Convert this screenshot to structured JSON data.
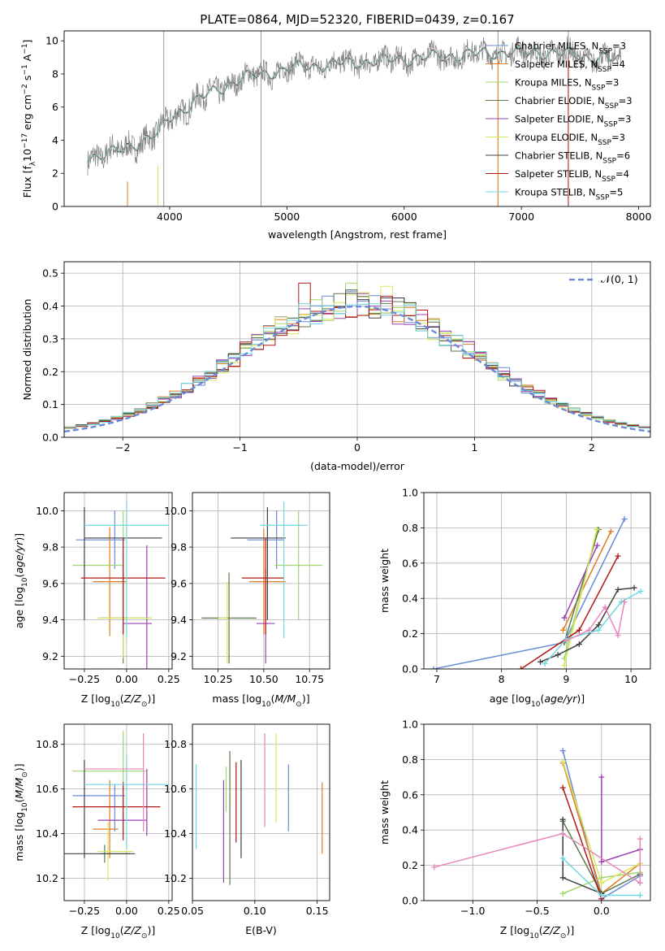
{
  "figure_title": "PLATE=0864, MJD=52320, FIBERID=0439, z=0.167",
  "colors": {
    "series": [
      "#6a8ad6",
      "#e07b20",
      "#a0d86a",
      "#5a7a4a",
      "#9a40b0",
      "#d8e860",
      "#404040",
      "#b01818",
      "#70d8e0"
    ],
    "pink": "#e886b8",
    "data": "#808080",
    "grid": "#b0b0b0"
  },
  "chart_data": [
    {
      "type": "line",
      "title": "PLATE=0864, MJD=52320, FIBERID=0439, z=0.167",
      "xlabel": "wavelength [Angstrom, rest frame]",
      "ylabel": "Flux [f_λ10^-17 erg cm^-2 s^-1 A^-1]",
      "xlim": [
        3100,
        8100
      ],
      "ylim": [
        0,
        10.6
      ],
      "xticks": [
        4000,
        5000,
        6000,
        7000,
        8000
      ],
      "yticks": [
        0,
        2,
        4,
        6,
        8,
        10
      ],
      "grid": false,
      "legend_position": "upper-right",
      "continuum_knots": {
        "x": [
          3300,
          3400,
          3600,
          3800,
          3900,
          4000,
          4200,
          4400,
          4600,
          4800,
          5000,
          5200,
          5400,
          5600,
          5800,
          6000,
          6200,
          6400,
          6600,
          6800,
          7000,
          7200,
          7400,
          7600,
          7850
        ],
        "y": [
          3.0,
          3.1,
          3.4,
          4.1,
          4.4,
          5.3,
          6.3,
          7.0,
          7.7,
          8.0,
          8.3,
          8.5,
          8.6,
          8.7,
          8.8,
          8.9,
          9.0,
          9.1,
          9.2,
          9.3,
          9.3,
          9.3,
          9.2,
          9.0,
          8.8
        ]
      },
      "series": [
        {
          "name": "Chabrier MILES, N_SSP=3"
        },
        {
          "name": "Salpeter MILES, N_SSP=4"
        },
        {
          "name": "Kroupa MILES, N_SSP=3"
        },
        {
          "name": "Chabrier ELODIE, N_SSP=3"
        },
        {
          "name": "Salpeter ELODIE, N_SSP=3"
        },
        {
          "name": "Kroupa ELODIE, N_SSP=3"
        },
        {
          "name": "Chabrier STELIB, N_SSP=6"
        },
        {
          "name": "Salpeter STELIB, N_SSP=4"
        },
        {
          "name": "Kroupa STELIB, N_SSP=5"
        }
      ]
    },
    {
      "type": "histogram",
      "xlabel": "(data-model)/error",
      "ylabel": "Normed distribution",
      "xlim": [
        -2.5,
        2.5
      ],
      "ylim": [
        0,
        0.535
      ],
      "xticks": [
        -2,
        -1,
        0,
        1,
        2
      ],
      "yticks": [
        0.0,
        0.1,
        0.2,
        0.3,
        0.4,
        0.5
      ],
      "grid": true,
      "legend": "N(0,1)",
      "legend_position": "upper-right",
      "bin_width": 0.1,
      "bin_start": -2.5,
      "peak_bins": [
        {
          "x": 0.1,
          "y": 0.51
        },
        {
          "x": -0.4,
          "y": 0.47
        },
        {
          "x": 0.0,
          "y": 0.47
        },
        {
          "x": 0.3,
          "y": 0.46
        }
      ]
    },
    {
      "type": "errorbar",
      "xlabel": "Z [log10(Z/Z⊙)]",
      "ylabel": "age [log10(age/yr)]",
      "xlim": [
        -0.37,
        0.27
      ],
      "ylim": [
        9.13,
        10.1
      ],
      "xticks": [
        -0.25,
        0.0,
        0.25
      ],
      "xticklabels": [
        "−0.25",
        "0.00",
        "0.25"
      ],
      "yticks": [
        9.2,
        9.4,
        9.6,
        9.8,
        10.0
      ],
      "grid": true,
      "points": [
        {
          "x": -0.07,
          "y": 9.84,
          "xerr": [
            0.23,
            0.06
          ],
          "yerr": [
            0.16,
            0.16
          ]
        },
        {
          "x": -0.1,
          "y": 9.61,
          "xerr": [
            0.1,
            0.1
          ],
          "yerr": [
            0.3,
            0.3
          ]
        },
        {
          "x": -0.02,
          "y": 9.7,
          "xerr": [
            0.3,
            0.0
          ],
          "yerr": [
            0.3,
            0.3
          ]
        },
        {
          "x": -0.02,
          "y": 9.41,
          "xerr": [
            0.14,
            0.16
          ],
          "yerr": [
            0.25,
            0.25
          ]
        },
        {
          "x": 0.12,
          "y": 9.38,
          "xerr": [
            0.14,
            0.03
          ],
          "yerr": [
            0.25,
            0.43
          ]
        },
        {
          "x": -0.02,
          "y": 9.41,
          "xerr": [
            0.15,
            0.17
          ],
          "yerr": [
            0.22,
            0.2
          ]
        },
        {
          "x": -0.25,
          "y": 9.85,
          "xerr": [
            0.0,
            0.46
          ],
          "yerr": [
            0.45,
            0.17
          ]
        },
        {
          "x": -0.02,
          "y": 9.63,
          "xerr": [
            0.25,
            0.25
          ],
          "yerr": [
            0.31,
            0.22
          ]
        },
        {
          "x": 0.0,
          "y": 9.92,
          "xerr": [
            0.25,
            0.25
          ],
          "yerr": [
            0.62,
            0.13
          ]
        }
      ]
    },
    {
      "type": "errorbar",
      "xlabel": "mass [log10(M/M⊙)]",
      "xlim": [
        10.11,
        10.86
      ],
      "ylim": [
        9.13,
        10.1
      ],
      "xticks": [
        10.25,
        10.5,
        10.75
      ],
      "xticklabels": [
        "10.25",
        "10.50",
        "10.75"
      ],
      "yticks": [
        9.2,
        9.4,
        9.6,
        9.8,
        10.0
      ],
      "grid": true,
      "points": [
        {
          "x": 10.57,
          "y": 9.84,
          "xerr": [
            0.16,
            0.04
          ],
          "yerr": [
            0.16,
            0.16
          ]
        },
        {
          "x": 10.5,
          "y": 9.61,
          "xerr": [
            0.08,
            0.12
          ],
          "yerr": [
            0.29,
            0.29
          ]
        },
        {
          "x": 10.69,
          "y": 9.7,
          "xerr": [
            0.13,
            0.13
          ],
          "yerr": [
            0.3,
            0.3
          ]
        },
        {
          "x": 10.31,
          "y": 9.41,
          "xerr": [
            0.15,
            0.15
          ],
          "yerr": [
            0.25,
            0.25
          ]
        },
        {
          "x": 10.51,
          "y": 9.38,
          "xerr": [
            0.05,
            0.05
          ],
          "yerr": [
            0.22,
            0.3
          ]
        },
        {
          "x": 10.3,
          "y": 9.41,
          "xerr": [
            0.05,
            0.0
          ],
          "yerr": [
            0.25,
            0.2
          ]
        },
        {
          "x": 10.52,
          "y": 9.85,
          "xerr": [
            0.2,
            0.1
          ],
          "yerr": [
            0.45,
            0.17
          ]
        },
        {
          "x": 10.51,
          "y": 9.63,
          "xerr": [
            0.13,
            0.1
          ],
          "yerr": [
            0.31,
            0.22
          ]
        },
        {
          "x": 10.61,
          "y": 9.92,
          "xerr": [
            0.13,
            0.13
          ],
          "yerr": [
            0.62,
            0.13
          ]
        }
      ]
    },
    {
      "type": "line",
      "xlabel": "age [log10(age/yr)]",
      "ylabel": "mass weight",
      "xlim": [
        6.8,
        10.3
      ],
      "ylim": [
        0,
        1
      ],
      "xticks": [
        7,
        8,
        9,
        10
      ],
      "yticks": [
        0.0,
        0.2,
        0.4,
        0.6,
        0.8,
        1.0
      ],
      "grid": true,
      "series": [
        {
          "x": [
            8.97,
            9.9
          ],
          "y": [
            0.15,
            0.85
          ],
          "x0": 6.95
        },
        {
          "x": [
            8.95,
            9.69
          ],
          "y": [
            0.22,
            0.78
          ]
        },
        {
          "x": [
            8.97,
            9.48
          ],
          "y": [
            0.06,
            0.79
          ]
        },
        {
          "x": [
            8.97,
            9.5
          ],
          "y": [
            0.15,
            0.79
          ]
        },
        {
          "x": [
            8.97,
            9.48
          ],
          "y": [
            0.29,
            0.7
          ]
        },
        {
          "x": [
            8.97,
            9.47
          ],
          "y": [
            0.02,
            0.79
          ]
        },
        {
          "x": [
            8.6,
            8.87,
            9.2,
            9.5,
            9.8,
            10.05
          ],
          "y": [
            0.04,
            0.08,
            0.14,
            0.25,
            0.45,
            0.46
          ]
        },
        {
          "x": [
            8.3,
            9.2,
            9.8
          ],
          "y": [
            0.0,
            0.22,
            0.64
          ]
        },
        {
          "x": [
            8.67,
            9.0,
            9.5,
            9.85,
            10.15
          ],
          "y": [
            0.03,
            0.17,
            0.22,
            0.38,
            0.44
          ]
        }
      ],
      "pink_series": {
        "x": [
          9.0,
          9.35,
          9.6,
          9.8,
          9.9
        ],
        "y": [
          0.16,
          0.22,
          0.35,
          0.19,
          0.38
        ]
      }
    },
    {
      "type": "errorbar",
      "xlabel": "Z [log10(Z/Z⊙)]",
      "ylabel": "mass [log10(M/M⊙)]",
      "xlim": [
        -0.37,
        0.27
      ],
      "ylim": [
        10.1,
        10.89
      ],
      "xticks": [
        -0.25,
        0.0,
        0.25
      ],
      "xticklabels": [
        "−0.25",
        "0.00",
        "0.25"
      ],
      "yticks": [
        10.2,
        10.4,
        10.6,
        10.8
      ],
      "grid": true,
      "points": [
        {
          "x": -0.07,
          "y": 10.57,
          "xerr": [
            0.25,
            0.06
          ],
          "yerr": [
            0.16,
            0.05
          ]
        },
        {
          "x": -0.1,
          "y": 10.42,
          "xerr": [
            0.1,
            0.05
          ],
          "yerr": [
            0.13,
            0.22
          ]
        },
        {
          "x": -0.02,
          "y": 10.68,
          "xerr": [
            0.3,
            0.14
          ],
          "yerr": [
            0.28,
            0.18
          ]
        },
        {
          "x": -0.13,
          "y": 10.31,
          "xerr": [
            0.02,
            0.15
          ],
          "yerr": [
            0.04,
            0.04
          ]
        },
        {
          "x": 0.12,
          "y": 10.46,
          "xerr": [
            0.29,
            0.0
          ],
          "yerr": [
            0.07,
            0.23
          ]
        },
        {
          "x": -0.11,
          "y": 10.32,
          "xerr": [
            0.06,
            0.15
          ],
          "yerr": [
            0.13,
            0.13
          ]
        },
        {
          "x": -0.25,
          "y": 10.31,
          "xerr": [
            0.14,
            0.3
          ],
          "yerr": [
            0.02,
            0.42
          ]
        },
        {
          "x": -0.02,
          "y": 10.52,
          "xerr": [
            0.3,
            0.22
          ],
          "yerr": [
            0.15,
            0.11
          ]
        },
        {
          "x": 0.0,
          "y": 10.62,
          "xerr": [
            0.25,
            0.25
          ],
          "yerr": [
            0.29,
            0.13
          ]
        }
      ]
    },
    {
      "type": "errorbar",
      "xlabel": "E(B-V)",
      "xlim": [
        0.05,
        0.16
      ],
      "ylim": [
        10.1,
        10.89
      ],
      "xticks": [
        0.05,
        0.1,
        0.15
      ],
      "xticklabels": [
        "0.05",
        "0.10",
        "0.15"
      ],
      "yticks": [
        10.2,
        10.4,
        10.6,
        10.8
      ],
      "grid": true,
      "points": [
        {
          "x": 0.127,
          "y": 10.56,
          "yerr": [
            0.15,
            0.15
          ]
        },
        {
          "x": 0.154,
          "y": 10.47,
          "yerr": [
            0.16,
            0.16
          ]
        },
        {
          "x": 0.077,
          "y": 10.6,
          "yerr": [
            0.1,
            0.1
          ]
        },
        {
          "x": 0.08,
          "y": 10.47,
          "yerr": [
            0.3,
            0.3
          ]
        },
        {
          "x": 0.075,
          "y": 10.41,
          "yerr": [
            0.23,
            0.23
          ]
        },
        {
          "x": 0.117,
          "y": 10.65,
          "yerr": [
            0.2,
            0.2
          ]
        },
        {
          "x": 0.089,
          "y": 10.51,
          "yerr": [
            0.22,
            0.22
          ]
        },
        {
          "x": 0.085,
          "y": 10.54,
          "yerr": [
            0.18,
            0.18
          ]
        },
        {
          "x": 0.053,
          "y": 10.52,
          "yerr": [
            0.19,
            0.19
          ]
        }
      ]
    },
    {
      "type": "line",
      "xlabel": "Z [log10(Z/Z⊙)]",
      "ylabel": "mass weight",
      "xlim": [
        -1.38,
        0.38
      ],
      "ylim": [
        0,
        1
      ],
      "xticks": [
        -1.0,
        -0.5,
        0.0
      ],
      "xticklabels": [
        "−1.0",
        "−0.5",
        "0.0"
      ],
      "yticks": [
        0.0,
        0.2,
        0.4,
        0.6,
        0.8,
        1.0
      ],
      "grid": true,
      "series": [
        {
          "x": [
            -0.3,
            0.0,
            0.3
          ],
          "y": [
            0.85,
            0.01,
            0.14
          ]
        },
        {
          "x": [
            -0.3,
            0.0,
            0.3
          ],
          "y": [
            0.78,
            0.04,
            0.21
          ]
        },
        {
          "x": [
            -0.3,
            0.0,
            0.3
          ],
          "y": [
            0.04,
            0.13,
            0.16
          ]
        },
        {
          "x": [
            -0.3,
            0.0,
            0.3
          ],
          "y": [
            0.45,
            0.04,
            0.15
          ]
        },
        {
          "x": [
            0.0,
            0.0,
            0.3
          ],
          "y": [
            0.7,
            0.22,
            0.29
          ]
        },
        {
          "x": [
            -0.3,
            0.0,
            0.3
          ],
          "y": [
            0.79,
            0.1,
            0.21
          ]
        },
        {
          "x": [
            -0.3,
            -0.3,
            0.0
          ],
          "y": [
            0.46,
            0.13,
            0.04
          ]
        },
        {
          "x": [
            -0.3,
            0.0
          ],
          "y": [
            0.64,
            0.01
          ]
        },
        {
          "x": [
            -0.3,
            0.0,
            0.3
          ],
          "y": [
            0.24,
            0.03,
            0.03
          ]
        }
      ],
      "pink_series": {
        "x": [
          -1.3,
          -0.3,
          0.3,
          0.3
        ],
        "y": [
          0.19,
          0.38,
          0.1,
          0.35
        ]
      }
    }
  ]
}
